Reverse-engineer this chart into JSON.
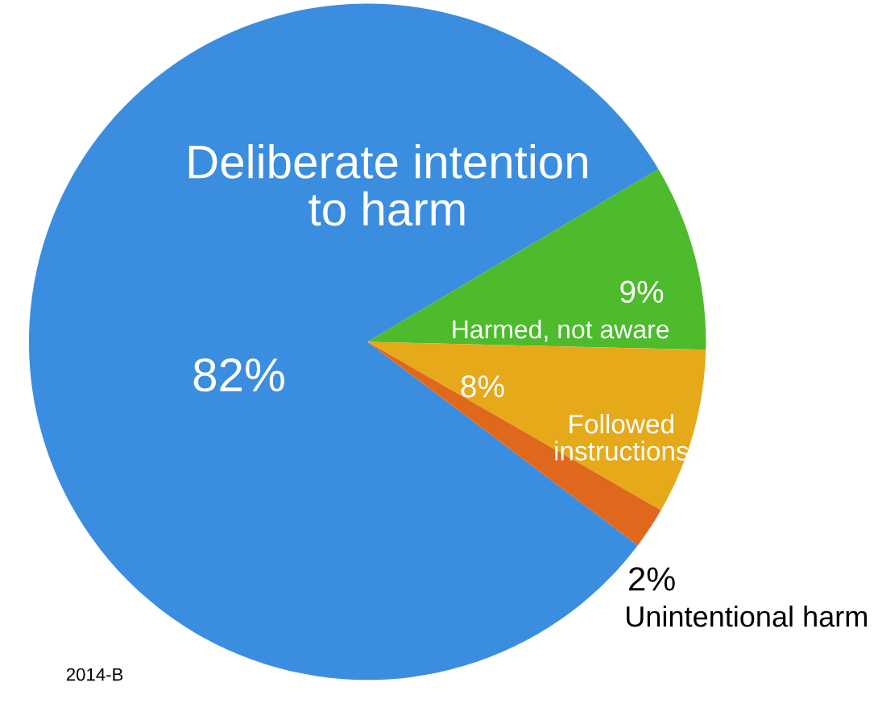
{
  "chart_data": {
    "type": "pie",
    "categories": [
      "Deliberate intention\nto harm",
      "Harmed, not aware",
      "Followed\ninstructions",
      "Unintentional harm"
    ],
    "values": [
      82,
      9,
      8,
      2
    ],
    "value_labels": [
      "82%",
      "9%",
      "8%",
      "2%"
    ],
    "colors": [
      "#3b8de0",
      "#4dbb2c",
      "#e6a91a",
      "#e0681c"
    ],
    "annotations": [
      "2014-B"
    ]
  }
}
